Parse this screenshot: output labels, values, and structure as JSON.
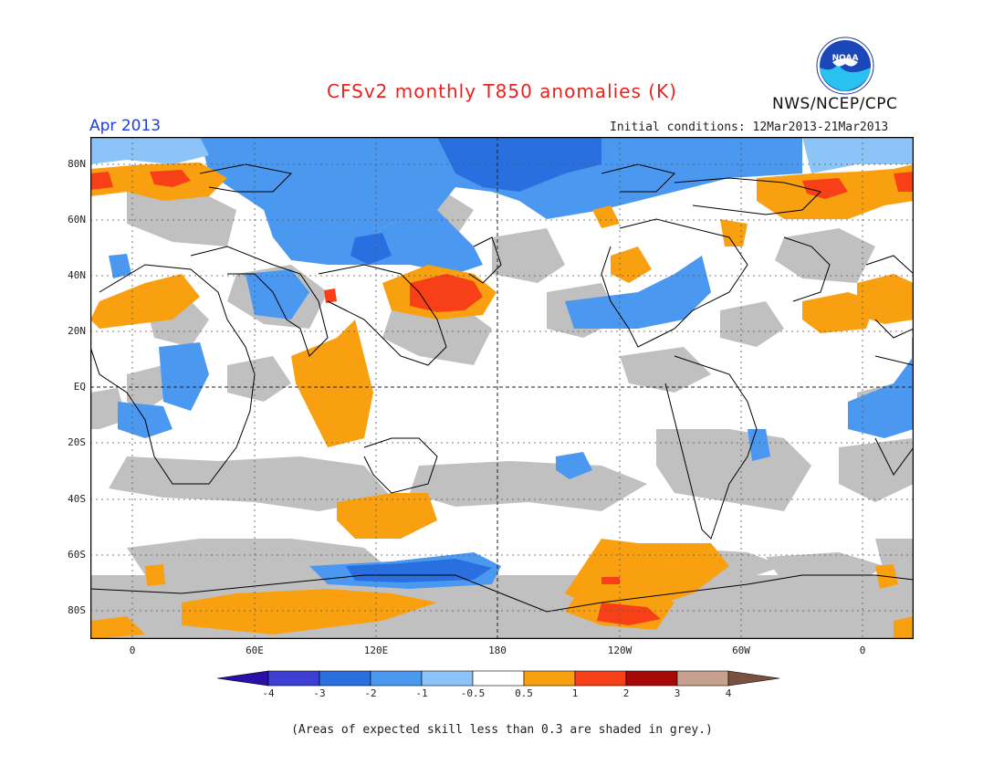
{
  "header": {
    "title": "CFSv2 monthly T850 anomalies (K)",
    "month": "Apr 2013",
    "initial_conditions": "Initial conditions: 12Mar2013-21Mar2013",
    "organization": "NWS/NCEP/CPC",
    "logo_text": "NOAA"
  },
  "axes": {
    "latitude_labels": [
      "80N",
      "60N",
      "40N",
      "20N",
      "EQ",
      "20S",
      "40S",
      "60S",
      "80S"
    ],
    "longitude_labels": [
      "0",
      "60E",
      "120E",
      "180",
      "120W",
      "60W",
      "0"
    ]
  },
  "colorbar": {
    "labels": [
      "-4",
      "-3",
      "-2",
      "-1",
      "-0.5",
      "0.5",
      "1",
      "2",
      "3",
      "4"
    ],
    "colors": [
      "#2a0fa8",
      "#3c3fd2",
      "#2a6fe0",
      "#4a98f0",
      "#8cc4f8",
      "#ffffff",
      "#f8a010",
      "#f84018",
      "#a80808",
      "#c8a090",
      "#7a5040"
    ]
  },
  "colors": {
    "grey_shading": "#c0c0c0",
    "warm_anomaly": "#f8a010",
    "strong_warm": "#f84018",
    "cool_anomaly": "#4a98f0",
    "strong_cool": "#2a6fe0",
    "title_color": "#e8231e",
    "month_color": "#1f3fe0"
  },
  "footer": {
    "note": "(Areas of expected skill less than 0.3 are shaded in grey.)"
  }
}
